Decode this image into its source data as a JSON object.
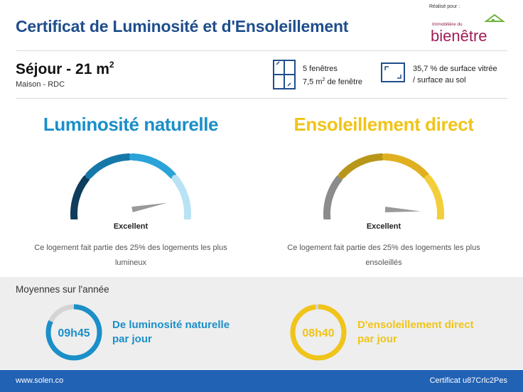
{
  "header": {
    "title": "Certificat de Luminosité et d'Ensoleillement",
    "logo_caption": "Réalisé pour :",
    "logo_small_text": "Immobilière du",
    "logo_text": "bienêtre"
  },
  "room": {
    "name": "Séjour - 21 m",
    "name_sup": "2",
    "subtitle": "Maison - RDC"
  },
  "windows": {
    "line1": "5 fenêtres",
    "line2_prefix": "7,5 m",
    "line2_sup": "2",
    "line2_suffix": " de fenêtre",
    "icon": "window-icon"
  },
  "glazing": {
    "line1": "35,7 % de surface vitrée",
    "line2": "/ surface au sol",
    "icon": "surface-ratio-icon"
  },
  "luminosite": {
    "title": "Luminosité naturelle",
    "rating": "Excellent",
    "description": "Ce logement fait partie des 25% des logements les plus lumineux",
    "color": "#1a8fc9",
    "segment_colors": [
      "#0f3d5c",
      "#1678a8",
      "#29a3d8",
      "#b9e3f4"
    ],
    "needle_level": 0.9
  },
  "ensoleillement": {
    "title": "Ensoleillement direct",
    "rating": "Excellent",
    "description": "Ce logement fait partie des 25% des logements les plus ensoleillés",
    "color": "#f0c419",
    "segment_colors": [
      "#8c8c8c",
      "#b8961a",
      "#e0b020",
      "#f2cf3a"
    ],
    "needle_level": 0.97
  },
  "averages": {
    "title": "Moyennes sur l'année",
    "luminosite": {
      "time": "09h45",
      "label_line1": "De luminosité naturelle",
      "label_line2": "par jour",
      "fraction": 0.82,
      "color": "#1a8fc9"
    },
    "ensoleillement": {
      "time": "08h40",
      "label_line1": "D'ensoleillement direct",
      "label_line2": "par jour",
      "fraction": 0.98,
      "color": "#f0c419"
    }
  },
  "footer": {
    "website": "www.solen.co",
    "certificate_id": "Certificat u87Crlc2Pes"
  }
}
